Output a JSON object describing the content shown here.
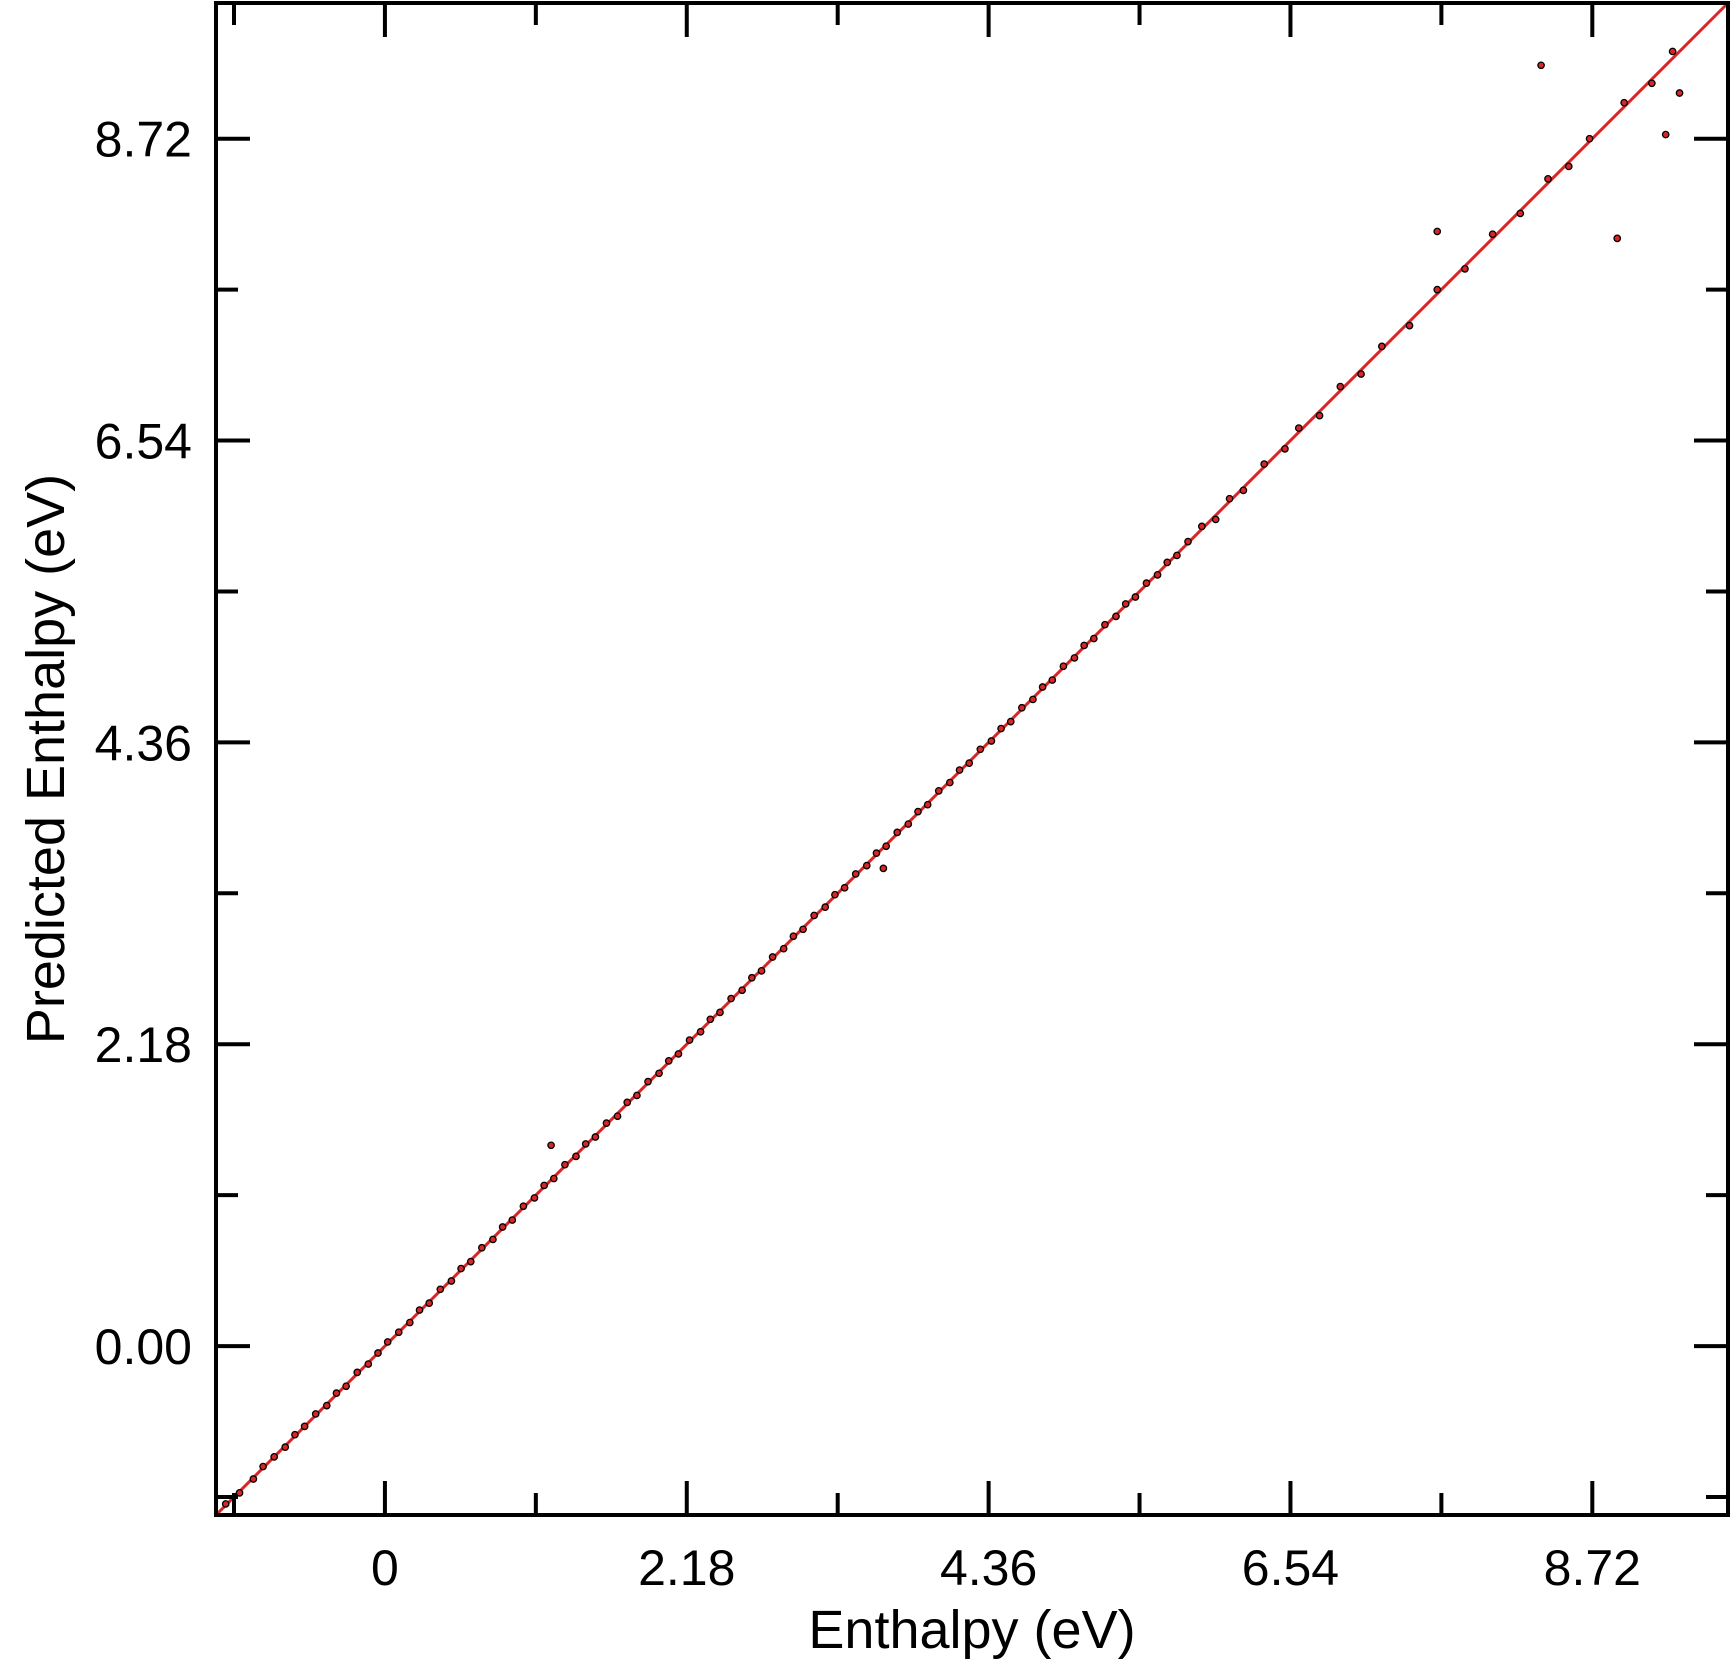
{
  "chart_data": {
    "type": "scatter",
    "title": "",
    "xlabel": "Enthalpy (eV)",
    "ylabel": "Predicted Enthalpy (eV)",
    "xlim": [
      -1.22,
      9.7
    ],
    "ylim": [
      -1.22,
      9.7
    ],
    "x_ticks": [
      0,
      2.18,
      4.36,
      6.54,
      8.72
    ],
    "x_tick_labels": [
      "0",
      "2.18",
      "4.36",
      "6.54",
      "8.72"
    ],
    "y_ticks": [
      0,
      2.18,
      4.36,
      6.54,
      8.72
    ],
    "y_tick_labels": [
      "0.00",
      "2.18",
      "4.36",
      "6.54",
      "8.72"
    ],
    "grid": false,
    "legend": "none",
    "colors": {
      "marker_fill": "#d62728",
      "marker_edge": "#000000",
      "fit_line": "#d62728",
      "axes": "#000000"
    },
    "fit_line": {
      "x": [
        -1.22,
        9.7
      ],
      "y": [
        -1.22,
        9.7
      ]
    },
    "series": [
      {
        "x": [
          -1.15,
          -1.05,
          -0.95,
          -0.88,
          -0.8,
          -0.72,
          -0.65,
          -0.58,
          -0.5,
          -0.42,
          -0.35,
          -0.28,
          -0.2,
          -0.12,
          -0.05,
          0.02,
          0.1,
          0.18,
          0.25,
          0.32,
          0.4,
          0.48,
          0.55,
          0.62,
          0.7,
          0.78,
          0.85,
          0.92,
          1.0,
          1.08,
          1.15,
          1.22,
          1.3,
          1.38,
          1.45,
          1.52,
          1.6,
          1.68,
          1.75,
          1.82,
          1.9,
          1.98,
          2.05,
          2.12,
          2.2,
          2.28,
          2.35,
          2.42,
          2.5,
          2.58,
          2.65,
          2.72,
          2.8,
          2.88,
          2.95,
          3.02,
          3.1,
          3.18,
          3.25,
          3.32,
          3.4,
          3.48,
          3.55,
          3.62,
          3.7,
          3.78,
          3.85,
          3.92,
          4.0,
          4.08,
          4.15,
          4.22,
          4.3,
          4.38,
          4.45,
          4.52,
          4.6,
          4.68,
          4.75,
          4.82,
          4.9,
          4.98,
          5.05,
          5.12,
          5.2,
          5.28,
          5.35,
          5.42,
          5.5,
          5.58,
          5.65,
          5.72,
          5.8,
          5.9,
          6.0,
          6.1,
          6.2,
          6.35,
          6.5,
          6.6,
          6.75,
          6.9,
          7.05,
          7.2,
          7.4,
          7.6,
          7.8,
          8.0,
          8.2,
          8.4,
          8.55,
          8.7,
          8.95,
          9.15,
          9.3,
          1.2,
          3.6,
          7.6,
          8.9,
          9.25,
          9.35,
          8.35
        ],
        "y": [
          -1.14,
          -1.06,
          -0.96,
          -0.87,
          -0.8,
          -0.73,
          -0.64,
          -0.58,
          -0.49,
          -0.43,
          -0.34,
          -0.29,
          -0.19,
          -0.13,
          -0.05,
          0.03,
          0.1,
          0.17,
          0.26,
          0.31,
          0.41,
          0.47,
          0.56,
          0.61,
          0.71,
          0.77,
          0.86,
          0.91,
          1.01,
          1.07,
          1.16,
          1.21,
          1.31,
          1.37,
          1.46,
          1.51,
          1.61,
          1.66,
          1.76,
          1.81,
          1.91,
          1.97,
          2.06,
          2.11,
          2.21,
          2.27,
          2.36,
          2.41,
          2.51,
          2.57,
          2.66,
          2.71,
          2.81,
          2.87,
          2.96,
          3.01,
          3.11,
          3.17,
          3.26,
          3.31,
          3.41,
          3.47,
          3.56,
          3.61,
          3.71,
          3.77,
          3.86,
          3.91,
          4.01,
          4.07,
          4.16,
          4.21,
          4.31,
          4.37,
          4.46,
          4.51,
          4.61,
          4.67,
          4.76,
          4.81,
          4.91,
          4.97,
          5.06,
          5.11,
          5.21,
          5.27,
          5.36,
          5.41,
          5.51,
          5.57,
          5.66,
          5.71,
          5.81,
          5.92,
          5.97,
          6.12,
          6.18,
          6.37,
          6.48,
          6.63,
          6.72,
          6.93,
          7.02,
          7.22,
          7.37,
          7.63,
          7.78,
          8.03,
          8.18,
          8.43,
          8.52,
          8.72,
          8.98,
          9.12,
          9.35,
          1.45,
          3.45,
          8.05,
          8.0,
          8.75,
          9.05,
          9.25
        ]
      }
    ]
  }
}
